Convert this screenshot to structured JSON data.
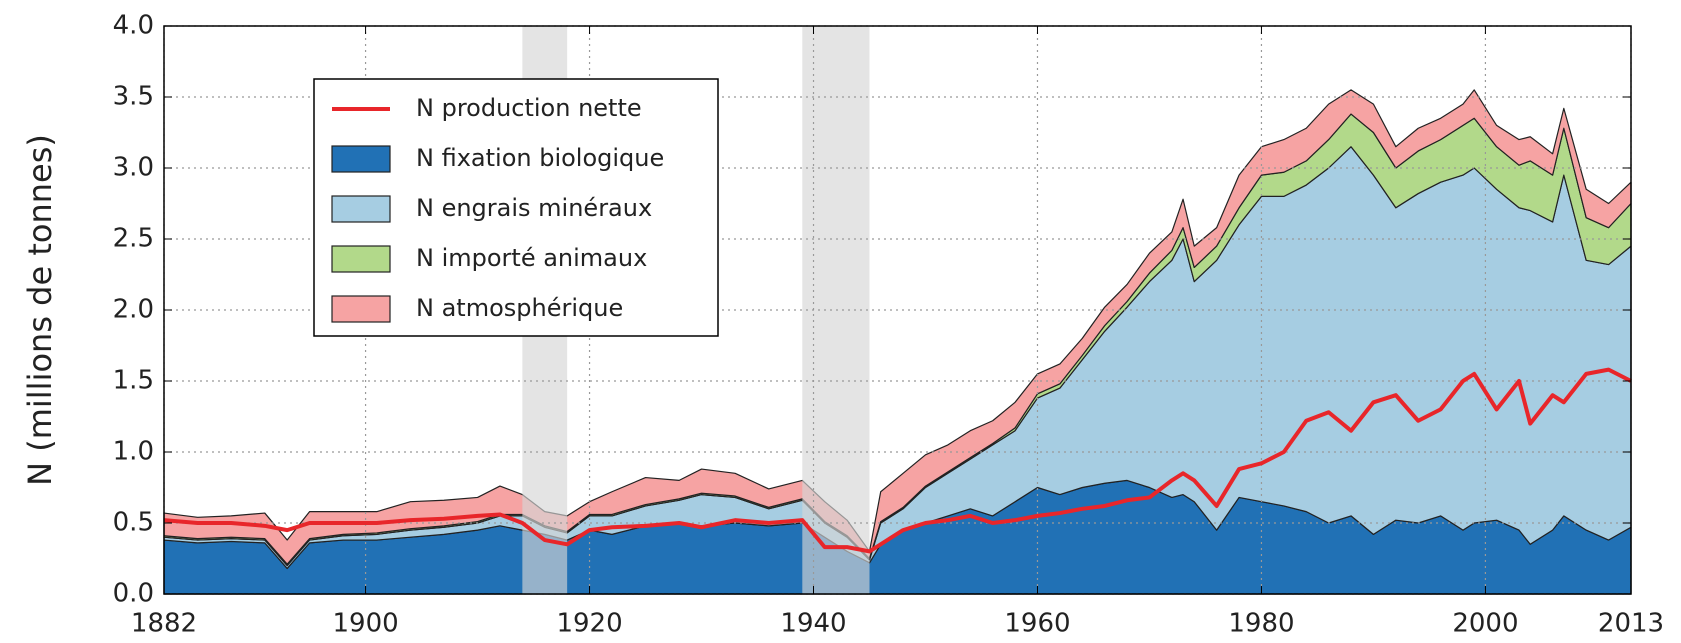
{
  "chart_data": {
    "type": "area",
    "stacked": true,
    "ylabel": "N (millions de tonnes)",
    "x": [
      1882,
      1885,
      1888,
      1891,
      1893,
      1895,
      1898,
      1901,
      1904,
      1907,
      1910,
      1912,
      1914,
      1916,
      1918,
      1920,
      1922,
      1925,
      1928,
      1930,
      1933,
      1936,
      1939,
      1941,
      1943,
      1945,
      1946,
      1948,
      1950,
      1952,
      1954,
      1956,
      1958,
      1960,
      1962,
      1964,
      1966,
      1968,
      1970,
      1972,
      1973,
      1974,
      1976,
      1978,
      1980,
      1982,
      1984,
      1986,
      1988,
      1990,
      1992,
      1994,
      1996,
      1998,
      1999,
      2001,
      2003,
      2004,
      2006,
      2007,
      2009,
      2011,
      2013
    ],
    "series": [
      {
        "name": "N production nette",
        "type": "line",
        "color": "#e8262a",
        "values": [
          0.52,
          0.5,
          0.5,
          0.48,
          0.45,
          0.5,
          0.5,
          0.5,
          0.52,
          0.53,
          0.55,
          0.56,
          0.5,
          0.38,
          0.35,
          0.45,
          0.47,
          0.48,
          0.5,
          0.47,
          0.52,
          0.5,
          0.52,
          0.33,
          0.33,
          0.3,
          0.35,
          0.45,
          0.5,
          0.52,
          0.55,
          0.5,
          0.52,
          0.55,
          0.57,
          0.6,
          0.62,
          0.66,
          0.68,
          0.8,
          0.85,
          0.8,
          0.62,
          0.88,
          0.92,
          1.0,
          1.22,
          1.28,
          1.15,
          1.35,
          1.4,
          1.22,
          1.3,
          1.5,
          1.55,
          1.3,
          1.5,
          1.2,
          1.4,
          1.35,
          1.55,
          1.58,
          1.5
        ]
      },
      {
        "name": "N fixation biologique",
        "type": "area",
        "color": "#2171b5",
        "values": [
          0.38,
          0.36,
          0.37,
          0.36,
          0.18,
          0.36,
          0.38,
          0.38,
          0.4,
          0.42,
          0.45,
          0.48,
          0.45,
          0.42,
          0.38,
          0.45,
          0.42,
          0.48,
          0.5,
          0.48,
          0.5,
          0.48,
          0.5,
          0.4,
          0.3,
          0.22,
          0.35,
          0.45,
          0.5,
          0.55,
          0.6,
          0.55,
          0.65,
          0.75,
          0.7,
          0.75,
          0.78,
          0.8,
          0.75,
          0.68,
          0.7,
          0.65,
          0.45,
          0.68,
          0.65,
          0.62,
          0.58,
          0.5,
          0.55,
          0.42,
          0.52,
          0.5,
          0.55,
          0.45,
          0.5,
          0.52,
          0.45,
          0.35,
          0.45,
          0.55,
          0.45,
          0.38,
          0.47
        ]
      },
      {
        "name": "N engrais minéraux",
        "type": "area",
        "color": "#a6cde2",
        "values": [
          0.02,
          0.02,
          0.02,
          0.02,
          0.02,
          0.02,
          0.03,
          0.04,
          0.05,
          0.05,
          0.05,
          0.07,
          0.1,
          0.05,
          0.05,
          0.1,
          0.13,
          0.14,
          0.16,
          0.22,
          0.18,
          0.12,
          0.16,
          0.1,
          0.1,
          0.02,
          0.15,
          0.15,
          0.25,
          0.3,
          0.35,
          0.5,
          0.5,
          0.63,
          0.75,
          0.9,
          1.07,
          1.22,
          1.45,
          1.67,
          1.8,
          1.55,
          1.9,
          1.92,
          2.15,
          2.18,
          2.3,
          2.5,
          2.6,
          2.53,
          2.2,
          2.32,
          2.35,
          2.5,
          2.5,
          2.33,
          2.27,
          2.35,
          2.17,
          2.4,
          1.9,
          1.94,
          1.98
        ]
      },
      {
        "name": "N importé animaux",
        "type": "area",
        "color": "#b2d98a",
        "values": [
          0.01,
          0.01,
          0.01,
          0.01,
          0.01,
          0.01,
          0.01,
          0.01,
          0.01,
          0.01,
          0.01,
          0.01,
          0.01,
          0.01,
          0.01,
          0.01,
          0.01,
          0.01,
          0.01,
          0.01,
          0.01,
          0.01,
          0.01,
          0.01,
          0.01,
          0.01,
          0.01,
          0.01,
          0.01,
          0.01,
          0.01,
          0.01,
          0.02,
          0.03,
          0.03,
          0.03,
          0.04,
          0.04,
          0.06,
          0.07,
          0.08,
          0.1,
          0.1,
          0.12,
          0.15,
          0.17,
          0.17,
          0.2,
          0.23,
          0.3,
          0.28,
          0.3,
          0.3,
          0.35,
          0.35,
          0.3,
          0.3,
          0.35,
          0.33,
          0.33,
          0.3,
          0.26,
          0.3
        ]
      },
      {
        "name": "N atmosphérique",
        "type": "area",
        "color": "#f6a3a3",
        "values": [
          0.16,
          0.15,
          0.15,
          0.18,
          0.17,
          0.19,
          0.16,
          0.15,
          0.19,
          0.18,
          0.17,
          0.2,
          0.14,
          0.1,
          0.11,
          0.09,
          0.16,
          0.19,
          0.13,
          0.17,
          0.16,
          0.13,
          0.13,
          0.14,
          0.11,
          0.05,
          0.21,
          0.24,
          0.22,
          0.19,
          0.19,
          0.16,
          0.18,
          0.14,
          0.14,
          0.12,
          0.13,
          0.12,
          0.14,
          0.13,
          0.2,
          0.15,
          0.13,
          0.23,
          0.2,
          0.23,
          0.23,
          0.25,
          0.17,
          0.2,
          0.15,
          0.16,
          0.15,
          0.15,
          0.2,
          0.15,
          0.18,
          0.17,
          0.15,
          0.14,
          0.2,
          0.17,
          0.15
        ]
      }
    ],
    "xlim": [
      1882,
      2013
    ],
    "xticks": [
      1882,
      1900,
      1920,
      1940,
      1960,
      1980,
      2000,
      2013
    ],
    "ylim": [
      0,
      4
    ],
    "yticks": [
      {
        "value": 0,
        "label": "0.0"
      },
      {
        "value": 0.5,
        "label": "0.5"
      },
      {
        "value": 1,
        "label": "1.0"
      },
      {
        "value": 1.5,
        "label": "1.5"
      },
      {
        "value": 2,
        "label": "2.0"
      },
      {
        "value": 2.5,
        "label": "2.5"
      },
      {
        "value": 3,
        "label": "3.0"
      },
      {
        "value": 3.5,
        "label": "3.5"
      },
      {
        "value": 4,
        "label": "4.0"
      }
    ],
    "grid": true,
    "legend": "upper left",
    "shaded_periods": [
      [
        1914,
        1918
      ],
      [
        1939,
        1945
      ]
    ],
    "shade_color": "#d6d6d6"
  }
}
